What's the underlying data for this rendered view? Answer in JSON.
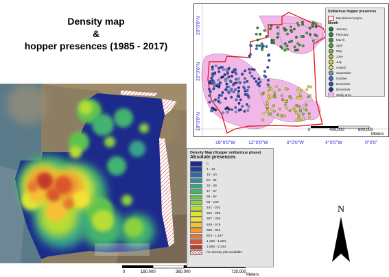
{
  "title": {
    "line1": "Density map",
    "line2": "&",
    "line3": "hopper presences (1985 - 2017)"
  },
  "inset_map": {
    "y_ticks": [
      "26°0'0\"N",
      "22°0'0\"N",
      "18°0'0\"N"
    ],
    "x_ticks": [
      "16°0'0\"W",
      "12°0'0\"W",
      "8°0'0\"W",
      "4°0'0\"W",
      "0°0'0\""
    ],
    "scale_labels": [
      "0",
      "400,000",
      "800,000"
    ],
    "scale_unit": "Meters",
    "legend": {
      "title": "Solitarious hopper presences",
      "boundary_label": "Mauritania margins",
      "month_heading": "Month",
      "months": [
        {
          "label": "January",
          "color": "#1f7a2e"
        },
        {
          "label": "February",
          "color": "#2e8c3a"
        },
        {
          "label": "March",
          "color": "#3a9c3f"
        },
        {
          "label": "April",
          "color": "#4aab3c"
        },
        {
          "label": "May",
          "color": "#7cbf38"
        },
        {
          "label": "June",
          "color": "#a7cc3c"
        },
        {
          "label": "July",
          "color": "#d3dc3a"
        },
        {
          "label": "August",
          "color": "#f0ea3a"
        },
        {
          "label": "September",
          "color": "#6f9ad8"
        },
        {
          "label": "October",
          "color": "#3f6fd0"
        },
        {
          "label": "November",
          "color": "#2a4fb5"
        },
        {
          "label": "December",
          "color": "#1c3494"
        }
      ],
      "study_area_label": "Study area",
      "boundary_color": "#e02020",
      "study_area_color": "#f3b6ea"
    }
  },
  "density_legend": {
    "title": "Density Map (Hopper solitarious phase)",
    "subtitle": "Absolute presences",
    "classes": [
      {
        "label": "0",
        "color": "#1c2a8c"
      },
      {
        "label": "1 - 13",
        "color": "#1f3f9e"
      },
      {
        "label": "14 - 20",
        "color": "#2a6fa3"
      },
      {
        "label": "21 - 31",
        "color": "#2f8f9a"
      },
      {
        "label": "32 - 46",
        "color": "#38a38a"
      },
      {
        "label": "47 - 67",
        "color": "#43b36f"
      },
      {
        "label": "68 - 97",
        "color": "#5fc24f"
      },
      {
        "label": "98 - 140",
        "color": "#8ad13c"
      },
      {
        "label": "141 - 201",
        "color": "#b6dd34"
      },
      {
        "label": "202 - 286",
        "color": "#dde534"
      },
      {
        "label": "287 - 408",
        "color": "#f4e036"
      },
      {
        "label": "409 - 579",
        "color": "#f6c034"
      },
      {
        "label": "580 - 822",
        "color": "#f09a33"
      },
      {
        "label": "823 - 1,167",
        "color": "#e8762f"
      },
      {
        "label": "1,168 - 1,654",
        "color": "#da562c"
      },
      {
        "label": "1,655 - 2,344",
        "color": "#c13a2a"
      }
    ],
    "no_data_label": "No density plot available"
  },
  "main_scale": {
    "labels": [
      "0",
      "180,000",
      "360,000",
      "720,000"
    ],
    "unit": "Meters"
  },
  "north_label": "N"
}
